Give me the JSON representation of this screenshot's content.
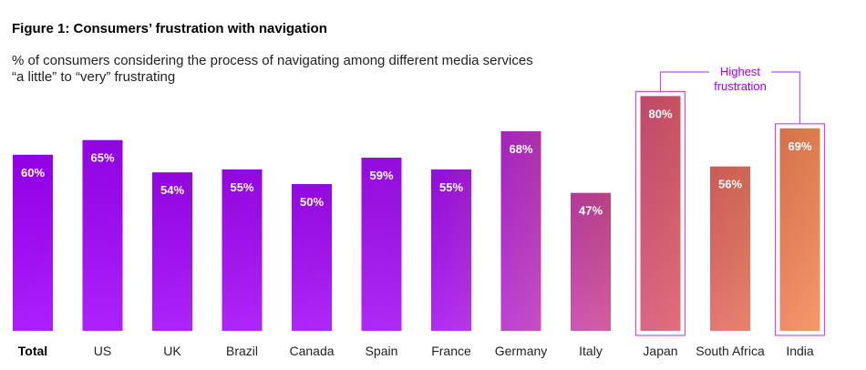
{
  "figure_title": "Figure 1: Consumers’ frustration with navigation",
  "subtitle_line1": "% of consumers considering the process of navigating among different media services",
  "subtitle_line2": "“a little” to “very” frustrating",
  "callout_line1": "Highest",
  "callout_line2": "frustration",
  "colors": {
    "purple": "#a100ff",
    "orange": "#ff9b4f",
    "highlight_border": "#c64dff"
  },
  "chart_data": {
    "type": "bar",
    "title": "Consumers’ frustration with navigation",
    "ylabel": "% of consumers",
    "ylim": [
      0,
      100
    ],
    "grid": false,
    "categories": [
      "Total",
      "US",
      "UK",
      "Brazil",
      "Canada",
      "Spain",
      "France",
      "Germany",
      "Italy",
      "Japan",
      "South Africa",
      "India"
    ],
    "values": [
      60,
      65,
      54,
      55,
      50,
      59,
      55,
      68,
      47,
      80,
      56,
      69
    ],
    "value_labels": [
      "60%",
      "65%",
      "54%",
      "55%",
      "50%",
      "59%",
      "55%",
      "68%",
      "47%",
      "80%",
      "56%",
      "69%"
    ],
    "highlighted": [
      "Japan",
      "India"
    ],
    "bold_categories": [
      "Total"
    ]
  }
}
